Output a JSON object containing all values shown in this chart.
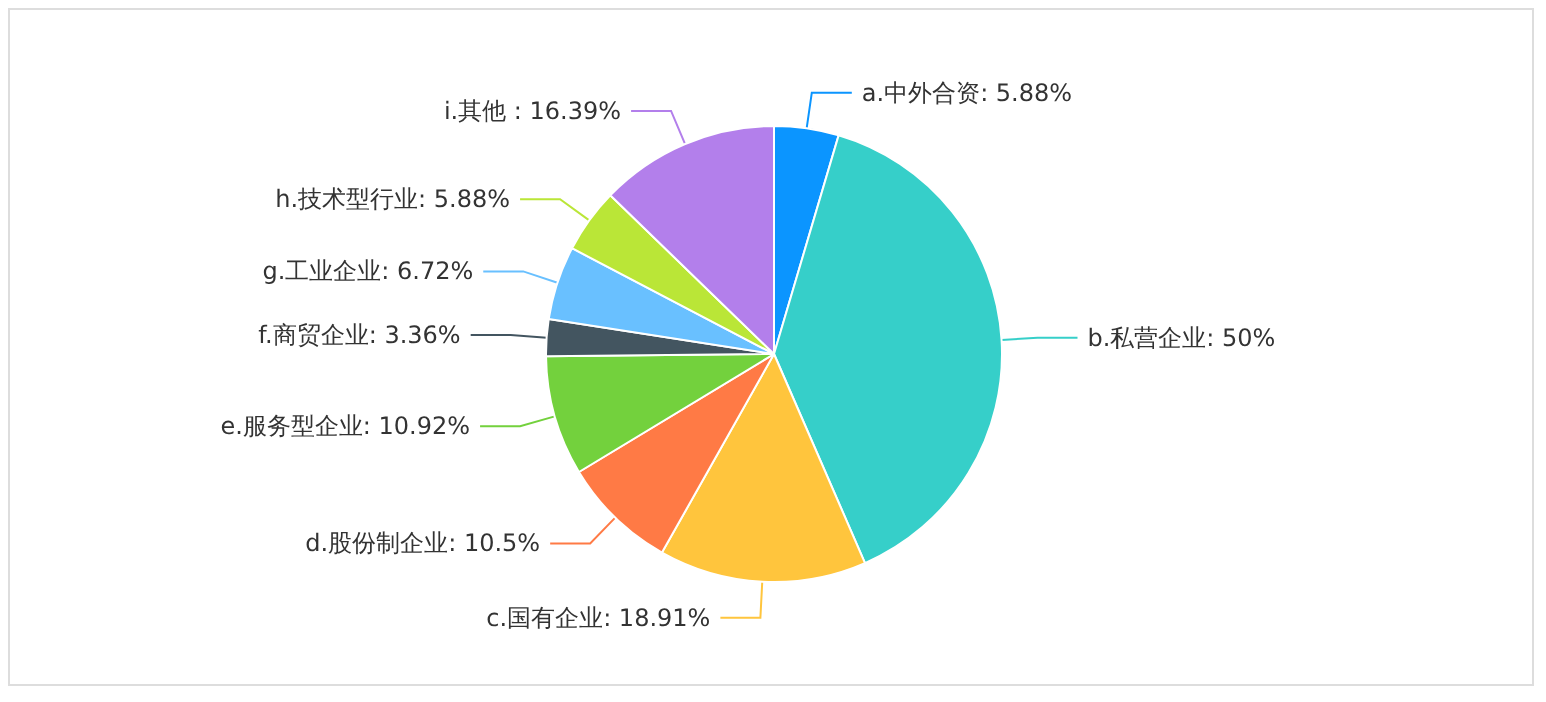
{
  "chart_data": {
    "type": "pie",
    "categories": [
      "a.中外合资",
      "b.私营企业",
      "c.国有企业",
      "d.股份制企业",
      "e.服务型企业",
      "f.商贸企业",
      "g.工业企业",
      "h.技术型行业",
      "i.其他 "
    ],
    "values": [
      5.88,
      50,
      18.91,
      10.5,
      10.92,
      3.36,
      6.72,
      5.88,
      16.39
    ],
    "value_labels": [
      "5.88%",
      "50%",
      "18.91%",
      "10.5%",
      "10.92%",
      "3.36%",
      "6.72%",
      "5.88%",
      "16.39%"
    ],
    "colors": [
      "#0b95ff",
      "#36cfc9",
      "#ffc53d",
      "#ff7a45",
      "#73d13d",
      "#435560",
      "#69c0ff",
      "#bae637",
      "#b37feb"
    ],
    "legend": false
  }
}
